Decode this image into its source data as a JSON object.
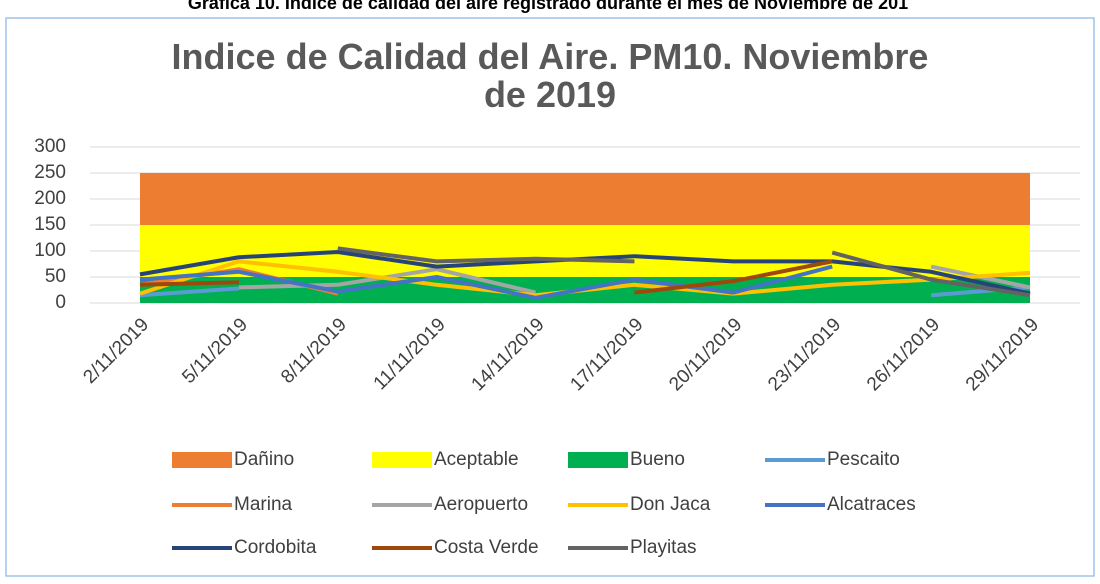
{
  "chart_data": {
    "type": "line",
    "caption": "Gráfica 10. Índice de calidad del aire registrado durante el mes de Noviembre de 201",
    "title": "Indice de Calidad del Aire. PM10. Noviembre de 2019",
    "categories": [
      "2/11/2019",
      "5/11/2019",
      "8/11/2019",
      "11/11/2019",
      "14/11/2019",
      "17/11/2019",
      "20/11/2019",
      "23/11/2019",
      "26/11/2019",
      "29/11/2019"
    ],
    "ylim": [
      0,
      300
    ],
    "yticks": [
      0,
      50,
      100,
      150,
      200,
      250,
      300
    ],
    "grid": true,
    "areas": [
      {
        "name": "Dañino",
        "color": "#ed7d31",
        "values": [
          100,
          100,
          100,
          100,
          100,
          100,
          100,
          100,
          100,
          100
        ]
      },
      {
        "name": "Aceptable",
        "color": "#ffff00",
        "values": [
          100,
          100,
          100,
          100,
          100,
          100,
          100,
          100,
          100,
          100
        ]
      },
      {
        "name": "Bueno",
        "color": "#00b050",
        "values": [
          50,
          50,
          50,
          50,
          50,
          50,
          50,
          50,
          50,
          50
        ]
      }
    ],
    "series": [
      {
        "name": "Pescaito",
        "color": "#5b9bd5",
        "values": [
          15,
          28,
          null,
          null,
          null,
          null,
          null,
          null,
          15,
          30
        ]
      },
      {
        "name": "Marina",
        "color": "#ed7d31",
        "values": [
          35,
          65,
          18,
          null,
          null,
          null,
          null,
          null,
          null,
          null
        ]
      },
      {
        "name": "Aeropuerto",
        "color": "#a5a5a5",
        "values": [
          null,
          30,
          35,
          65,
          20,
          null,
          null,
          null,
          70,
          30
        ]
      },
      {
        "name": "Don Jaca",
        "color": "#ffc000",
        "values": [
          18,
          80,
          60,
          35,
          15,
          35,
          18,
          35,
          45,
          58
        ]
      },
      {
        "name": "Alcatraces",
        "color": "#4472c4",
        "values": [
          45,
          60,
          22,
          50,
          10,
          45,
          20,
          70,
          null,
          null
        ]
      },
      {
        "name": "Cordobita",
        "color": "#264478",
        "values": [
          55,
          88,
          98,
          70,
          80,
          90,
          80,
          80,
          60,
          18
        ]
      },
      {
        "name": "Costa Verde",
        "color": "#9e480e",
        "values": [
          35,
          40,
          null,
          null,
          null,
          20,
          42,
          80,
          null,
          null
        ]
      },
      {
        "name": "Playitas",
        "color": "#636363",
        "values": [
          null,
          null,
          105,
          80,
          85,
          80,
          null,
          97,
          45,
          15
        ]
      }
    ]
  }
}
